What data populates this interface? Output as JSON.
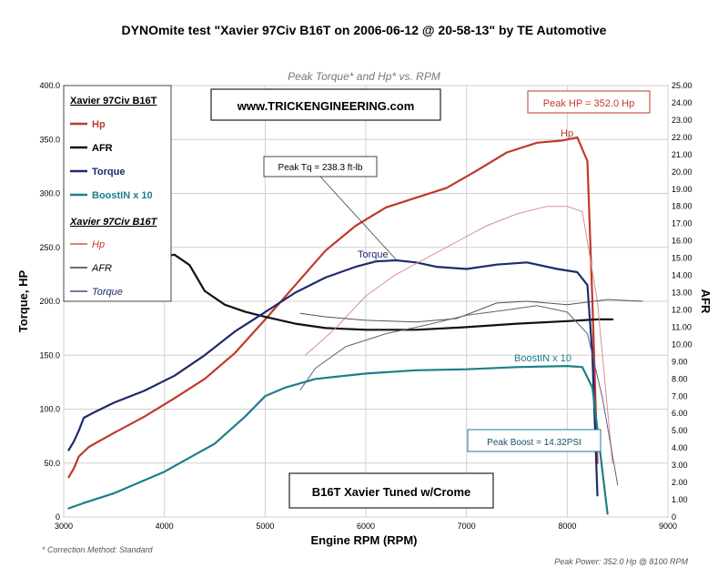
{
  "chart_data": {
    "type": "line",
    "title": "DYNOmite test \"Xavier 97Civ B16T on 2006-06-12 @ 20-58-13\" by TE Automotive",
    "subtitle": "Peak Torque* and Hp* vs. RPM",
    "xlabel": "Engine RPM (RPM)",
    "ylabel_left": "Torque, HP",
    "ylabel_right": "AFR",
    "xlim": [
      3000,
      9000
    ],
    "ylim_left": [
      0,
      400
    ],
    "ylim_right": [
      0,
      25
    ],
    "x_ticks": [
      "3000",
      "4000",
      "5000",
      "6000",
      "7000",
      "8000",
      "9000"
    ],
    "y_left_ticks": [
      "0",
      "50.0",
      "100.0",
      "150.0",
      "200.0",
      "250.0",
      "300.0",
      "350.0",
      "400.0"
    ],
    "y_right_ticks": [
      "0",
      "1.00",
      "2.00",
      "3.00",
      "4.00",
      "5.00",
      "6.00",
      "7.00",
      "8.00",
      "9.00",
      "10.00",
      "11.00",
      "12.00",
      "13.00",
      "14.00",
      "15.00",
      "16.00",
      "17.00",
      "18.00",
      "19.00",
      "20.00",
      "21.00",
      "22.00",
      "23.00",
      "24.00",
      "25.00"
    ],
    "grid": true,
    "legend_position": "top-left",
    "legend": {
      "group1_title": "Xavier 97Civ B16T",
      "group1_items": [
        {
          "name": "Hp",
          "color": "#c0392b"
        },
        {
          "name": "AFR",
          "color": "#111111"
        },
        {
          "name": "Torque",
          "color": "#1f2a6b"
        },
        {
          "name": "BoostIN x 10",
          "color": "#1b7f8a"
        }
      ],
      "group2_title": "Xavier 97Civ B16T",
      "group2_items": [
        {
          "name": "Hp",
          "color": "#c0392b"
        },
        {
          "name": "AFR",
          "color": "#111111"
        },
        {
          "name": "Torque",
          "color": "#1f2a6b"
        }
      ]
    },
    "series": [
      {
        "name": "Hp",
        "axis": "left",
        "color": "#c0392b",
        "width": 2.2,
        "x": [
          3050,
          3100,
          3150,
          3250,
          3500,
          3800,
          4100,
          4400,
          4700,
          5000,
          5300,
          5600,
          5900,
          6200,
          6500,
          6800,
          7100,
          7400,
          7700,
          7950,
          8100,
          8200,
          8250,
          8300
        ],
        "y": [
          37,
          45,
          56,
          65,
          78,
          93,
          110,
          128,
          152,
          183,
          215,
          247,
          270,
          287,
          296,
          305,
          321,
          338,
          347,
          349,
          352,
          330,
          200,
          50
        ]
      },
      {
        "name": "AFR",
        "axis": "right",
        "color": "#111111",
        "width": 2.2,
        "x": [
          4000,
          4100,
          4250,
          4400,
          4600,
          4800,
          5000,
          5300,
          5600,
          6000,
          6500,
          7000,
          7500,
          8000,
          8300,
          8450
        ],
        "y": [
          15.1,
          15.2,
          14.6,
          13.1,
          12.3,
          11.9,
          11.6,
          11.2,
          10.95,
          10.85,
          10.85,
          11.0,
          11.2,
          11.35,
          11.45,
          11.45
        ]
      },
      {
        "name": "Torque",
        "axis": "left",
        "color": "#1f2a6b",
        "width": 2.2,
        "x": [
          3050,
          3100,
          3150,
          3200,
          3300,
          3500,
          3800,
          4100,
          4400,
          4700,
          5000,
          5300,
          5600,
          5900,
          6100,
          6300,
          6500,
          6700,
          7000,
          7300,
          7600,
          7900,
          8100,
          8200,
          8250,
          8300
        ],
        "y": [
          62,
          70,
          80,
          92,
          97,
          106,
          117,
          131,
          150,
          172,
          190,
          208,
          222,
          232,
          237,
          238,
          236,
          232,
          230,
          234,
          236,
          230,
          227,
          215,
          150,
          20
        ]
      },
      {
        "name": "BoostIN x 10",
        "axis": "left",
        "color": "#1b7f8a",
        "width": 2.2,
        "x": [
          3050,
          3200,
          3500,
          4000,
          4500,
          4800,
          5000,
          5200,
          5500,
          6000,
          6500,
          7000,
          7500,
          8000,
          8150,
          8250,
          8400
        ],
        "y": [
          8,
          13,
          22,
          42,
          68,
          93,
          112,
          120,
          128,
          133,
          136,
          137,
          139,
          140,
          139,
          120,
          3
        ]
      },
      {
        "name": "Hp (comparison)",
        "axis": "left",
        "color": "#d89090",
        "width": 1,
        "x": [
          5400,
          5700,
          6000,
          6300,
          6600,
          6900,
          7200,
          7500,
          7800,
          8000,
          8150,
          8300,
          8450
        ],
        "y": [
          150,
          175,
          205,
          225,
          240,
          255,
          270,
          281,
          288,
          288,
          283,
          200,
          50
        ]
      },
      {
        "name": "AFR (comparison)",
        "axis": "right",
        "color": "#555555",
        "width": 1,
        "x": [
          5350,
          5600,
          6000,
          6500,
          6900,
          7300,
          7600,
          8000,
          8400,
          8750
        ],
        "y": [
          11.8,
          11.6,
          11.4,
          11.3,
          11.5,
          12.4,
          12.5,
          12.3,
          12.6,
          12.5
        ]
      },
      {
        "name": "Torque (comparison)",
        "axis": "left",
        "color": "#606080",
        "width": 1,
        "x": [
          5350,
          5500,
          5800,
          6200,
          6600,
          7000,
          7400,
          7700,
          8000,
          8200,
          8350,
          8500
        ],
        "y": [
          118,
          138,
          158,
          170,
          178,
          187,
          192,
          196,
          190,
          170,
          110,
          30
        ]
      }
    ],
    "annotations": {
      "website": "www.TRICKENGINEERING.com",
      "peak_tq": "Peak Tq = 238.3 ft-lb",
      "peak_hp": "Peak HP = 352.0 Hp",
      "hp_label": "Hp",
      "torque_label": "Torque",
      "boost_label": "BoostIN x 10",
      "peak_boost": "Peak Boost = 14.32PSI",
      "tuned": "B16T  Xavier Tuned w/Crome",
      "correction": "* Correction Method: Standard",
      "peak_power": "Peak Power: 352.0 Hp @ 8100 RPM"
    }
  }
}
